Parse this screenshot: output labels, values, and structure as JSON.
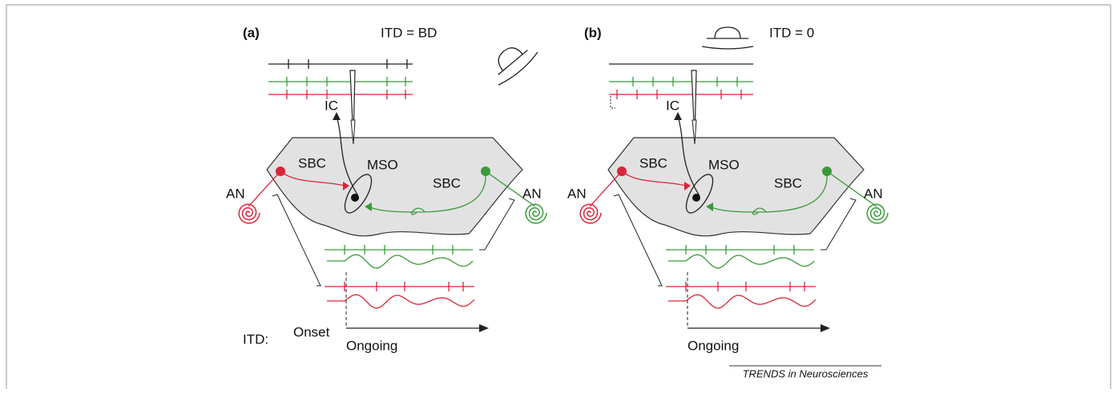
{
  "panels": [
    {
      "label": "(a)",
      "condition": "ITD = BD",
      "ic": "IC",
      "sbc_left": "SBC",
      "mso": "MSO",
      "sbc_right": "SBC",
      "an_left": "AN",
      "an_right": "AN",
      "itd": "ITD:",
      "onset": "Onset",
      "ongoing": "Ongoing"
    },
    {
      "label": "(b)",
      "condition": "ITD = 0",
      "ic": "IC",
      "sbc_left": "SBC",
      "mso": "MSO",
      "sbc_right": "SBC",
      "an_left": "AN",
      "an_right": "AN",
      "ongoing": "Ongoing"
    }
  ],
  "footer": "TRENDS in Neurosciences"
}
